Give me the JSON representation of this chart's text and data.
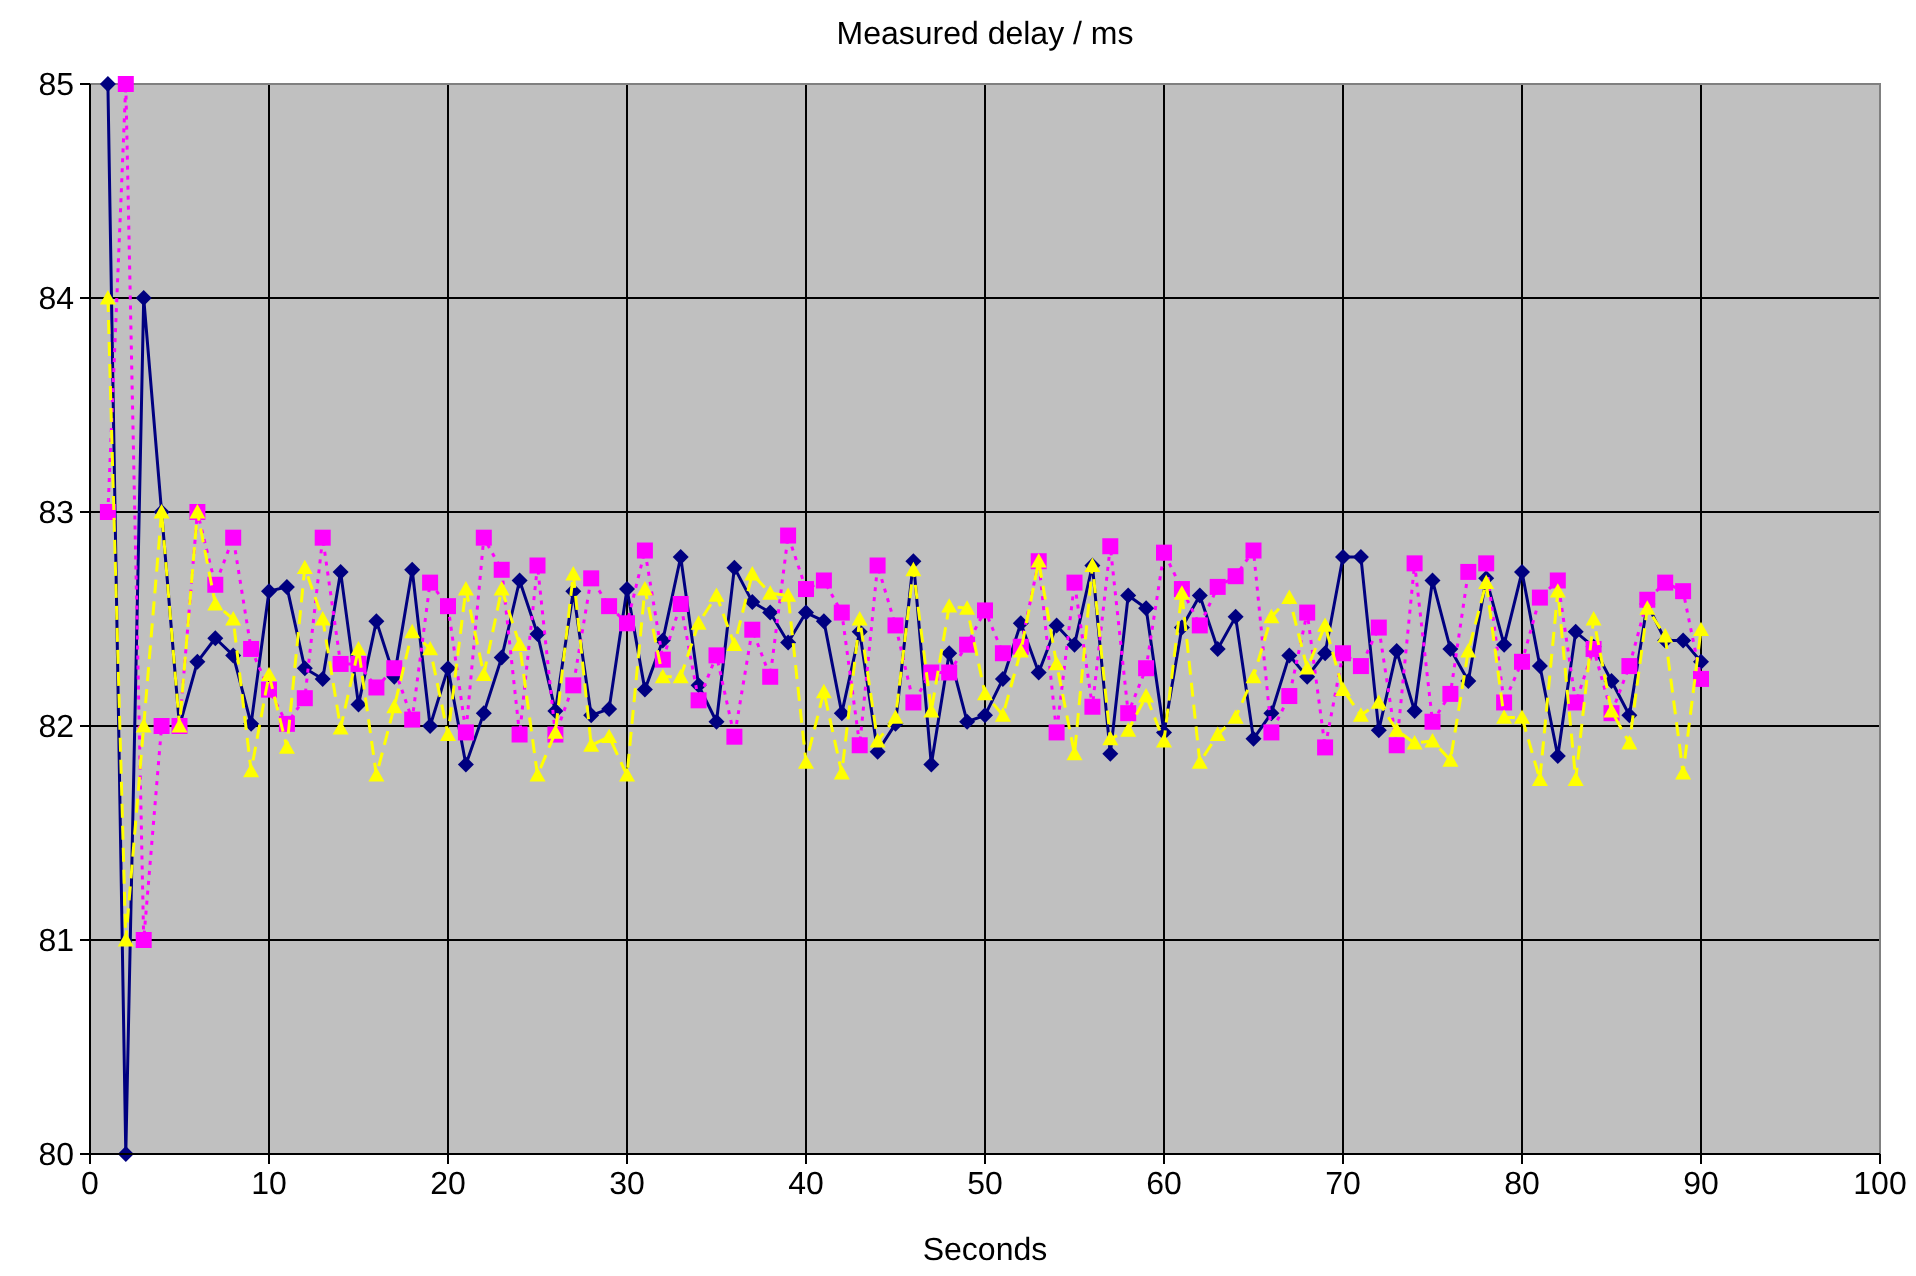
{
  "chart_data": {
    "type": "line",
    "title": "Measured delay / ms",
    "xlabel": "Seconds",
    "x": [
      1,
      2,
      3,
      4,
      5,
      6,
      7,
      8,
      9,
      10,
      11,
      12,
      13,
      14,
      15,
      16,
      17,
      18,
      19,
      20,
      21,
      22,
      23,
      24,
      25,
      26,
      27,
      28,
      29,
      30,
      31,
      32,
      33,
      34,
      35,
      36,
      37,
      38,
      39,
      40,
      41,
      42,
      43,
      44,
      45,
      46,
      47,
      48,
      49,
      50,
      51,
      52,
      53,
      54,
      55,
      56,
      57,
      58,
      59,
      60,
      61,
      62,
      63,
      64,
      65,
      66,
      67,
      68,
      69,
      70,
      71,
      72,
      73,
      74,
      75,
      76,
      77,
      78,
      79,
      80,
      81,
      82,
      83,
      84,
      85,
      86,
      87,
      88,
      89,
      90
    ],
    "xlim": [
      0,
      100
    ],
    "xticks": [
      0,
      10,
      20,
      30,
      40,
      50,
      60,
      70,
      80,
      90,
      100
    ],
    "ylim": [
      80,
      85
    ],
    "yticks": [
      80,
      81,
      82,
      83,
      84,
      85
    ],
    "grid": true,
    "series": [
      {
        "color": "#000080",
        "marker": "diamond",
        "line_style": "solid",
        "values": [
          85,
          80,
          84,
          83,
          82,
          82.3,
          82.41,
          82.33,
          82.01,
          82.63,
          82.65,
          82.27,
          82.22,
          82.72,
          82.1,
          82.49,
          82.23,
          82.73,
          82.0,
          82.27,
          81.82,
          82.06,
          82.32,
          82.68,
          82.43,
          82.07,
          82.63,
          82.05,
          82.08,
          82.64,
          82.17,
          82.4,
          82.79,
          82.19,
          82.02,
          82.74,
          82.58,
          82.53,
          82.39,
          82.53,
          82.49,
          82.06,
          82.44,
          81.88,
          82.01,
          82.77,
          81.82,
          82.34,
          82.02,
          82.05,
          82.22,
          82.48,
          82.25,
          82.47,
          82.38,
          82.75,
          81.87,
          82.61,
          82.55,
          81.97,
          82.46,
          82.61,
          82.36,
          82.51,
          81.94,
          82.06,
          82.33,
          82.23,
          82.34,
          82.79,
          82.79,
          81.98,
          82.35,
          82.07,
          82.68,
          82.36,
          82.21,
          82.69,
          82.38,
          82.72,
          82.28,
          81.86,
          82.44,
          82.37,
          82.21,
          82.05,
          82.57,
          82.4,
          82.4,
          82.3
        ]
      },
      {
        "color": "#ff00ff",
        "marker": "square",
        "line_style": "dotted",
        "values": [
          83,
          85,
          81,
          82,
          82,
          83,
          82.66,
          82.88,
          82.36,
          82.17,
          82.01,
          82.13,
          82.88,
          82.29,
          82.29,
          82.18,
          82.27,
          82.03,
          82.67,
          82.56,
          81.97,
          82.88,
          82.73,
          81.96,
          82.75,
          81.96,
          82.19,
          82.69,
          82.56,
          82.48,
          82.82,
          82.31,
          82.57,
          82.12,
          82.33,
          81.95,
          82.45,
          82.23,
          82.89,
          82.64,
          82.68,
          82.53,
          81.91,
          82.75,
          82.47,
          82.11,
          82.25,
          82.25,
          82.38,
          82.54,
          82.34,
          82.37,
          82.77,
          81.97,
          82.67,
          82.09,
          82.84,
          82.06,
          82.27,
          82.81,
          82.64,
          82.47,
          82.65,
          82.7,
          82.82,
          81.97,
          82.14,
          82.53,
          81.9,
          82.34,
          82.28,
          82.46,
          81.91,
          82.76,
          82.02,
          82.15,
          82.72,
          82.76,
          82.11,
          82.3,
          82.6,
          82.68,
          82.11,
          82.36,
          82.06,
          82.28,
          82.59,
          82.67,
          82.63,
          82.22
        ]
      },
      {
        "color": "#ffff00",
        "marker": "triangle",
        "line_style": "dashed",
        "values": [
          84,
          81,
          82,
          83,
          82,
          83,
          82.57,
          82.5,
          81.79,
          82.24,
          81.9,
          82.74,
          82.5,
          81.99,
          82.36,
          81.77,
          82.09,
          82.44,
          82.36,
          81.96,
          82.64,
          82.24,
          82.64,
          82.38,
          81.77,
          81.97,
          82.71,
          81.91,
          81.95,
          81.77,
          82.64,
          82.23,
          82.23,
          82.48,
          82.61,
          82.38,
          82.71,
          82.62,
          82.61,
          81.83,
          82.16,
          81.78,
          82.5,
          81.93,
          82.04,
          82.73,
          82.07,
          82.56,
          82.55,
          82.15,
          82.05,
          82.35,
          82.77,
          82.29,
          81.87,
          82.75,
          81.94,
          81.98,
          82.14,
          81.93,
          82.62,
          81.83,
          81.96,
          82.04,
          82.23,
          82.51,
          82.6,
          82.27,
          82.47,
          82.17,
          82.05,
          82.11,
          81.98,
          81.92,
          81.93,
          81.84,
          82.35,
          82.67,
          82.04,
          82.04,
          81.75,
          82.63,
          81.75,
          82.5,
          82.07,
          81.92,
          82.55,
          82.42,
          81.78,
          82.45
        ]
      }
    ]
  }
}
